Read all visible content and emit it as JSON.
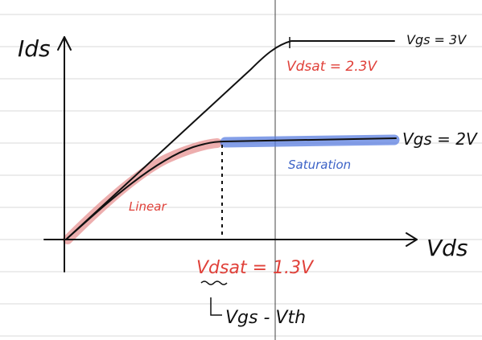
{
  "labels": {
    "y_axis": "Ids",
    "x_axis": "Vds",
    "curve_top": "Vgs = 3V",
    "vdsat_top": "Vdsat = 2.3V",
    "curve_bottom": "Vgs = 2V",
    "saturation": "Saturation",
    "linear": "Linear",
    "vdsat_bottom": "Vdsat = 1.3V",
    "vgs_minus_vth": "Vgs - Vth"
  },
  "colors": {
    "ink": "#111111",
    "red_text": "#e0413a",
    "blue_text": "#3d63c7",
    "linear_highlight": "#e58c8c",
    "saturation_highlight": "#5b7fe0",
    "ruled_line": "#d9d9d9",
    "vertical_line": "#444444"
  }
}
